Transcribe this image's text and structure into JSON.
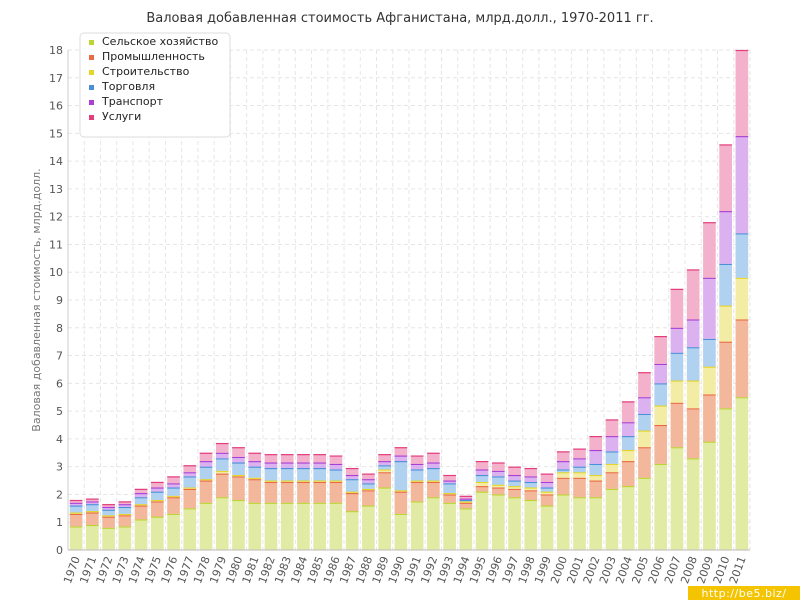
{
  "chart_data": {
    "type": "bar",
    "stacked": true,
    "title": "Валовая добавленная стоимость Афганистана, млрд.долл., 1970-2011 гг.",
    "ylabel": "Валовая добавленная стоимость, млрд.долл.",
    "xlabel": "",
    "ylim": [
      0,
      18
    ],
    "yticks": [
      "0",
      "1",
      "2",
      "3",
      "4",
      "5",
      "6",
      "7",
      "8",
      "9",
      "10",
      "11",
      "12",
      "13",
      "14",
      "15",
      "16",
      "17",
      "18"
    ],
    "grid": true,
    "legend_position": "top-left",
    "categories": [
      "1970",
      "1971",
      "1972",
      "1973",
      "1974",
      "1975",
      "1976",
      "1977",
      "1978",
      "1979",
      "1980",
      "1981",
      "1982",
      "1983",
      "1984",
      "1985",
      "1986",
      "1987",
      "1988",
      "1989",
      "1990",
      "1991",
      "1992",
      "1993",
      "1994",
      "1995",
      "1996",
      "1997",
      "1998",
      "1999",
      "2000",
      "2001",
      "2002",
      "2003",
      "2004",
      "2005",
      "2006",
      "2007",
      "2008",
      "2009",
      "2010",
      "2011"
    ],
    "series": [
      {
        "name": "Сельское хозяйство",
        "color": "#bcd631",
        "fill": "#dfe99a",
        "values": [
          0.85,
          0.9,
          0.8,
          0.85,
          1.1,
          1.2,
          1.3,
          1.5,
          1.7,
          1.9,
          1.8,
          1.7,
          1.7,
          1.7,
          1.7,
          1.7,
          1.7,
          1.4,
          1.6,
          2.25,
          1.3,
          1.75,
          1.9,
          1.7,
          1.5,
          2.1,
          2.0,
          1.9,
          1.8,
          1.6,
          2.0,
          1.9,
          1.9,
          2.2,
          2.3,
          2.6,
          3.1,
          3.7,
          3.3,
          3.9,
          5.1,
          5.5
        ]
      },
      {
        "name": "Промышленность",
        "color": "#ea6a46",
        "fill": "#f2b090",
        "values": [
          0.45,
          0.45,
          0.4,
          0.4,
          0.5,
          0.55,
          0.6,
          0.7,
          0.8,
          0.85,
          0.85,
          0.85,
          0.75,
          0.75,
          0.75,
          0.75,
          0.75,
          0.65,
          0.55,
          0.55,
          0.8,
          0.7,
          0.55,
          0.3,
          0.2,
          0.2,
          0.25,
          0.3,
          0.35,
          0.4,
          0.6,
          0.7,
          0.6,
          0.6,
          0.9,
          1.1,
          1.4,
          1.6,
          1.8,
          1.7,
          2.4,
          2.8
        ]
      },
      {
        "name": "Строительство",
        "color": "#e6d529",
        "fill": "#f1ea9a",
        "values": [
          0.05,
          0.05,
          0.05,
          0.05,
          0.05,
          0.05,
          0.05,
          0.05,
          0.05,
          0.1,
          0.05,
          0.05,
          0.05,
          0.05,
          0.05,
          0.05,
          0.05,
          0.05,
          0.05,
          0.1,
          0.05,
          0.05,
          0.05,
          0.05,
          0.05,
          0.15,
          0.1,
          0.1,
          0.1,
          0.1,
          0.2,
          0.2,
          0.2,
          0.3,
          0.4,
          0.6,
          0.7,
          0.8,
          1.0,
          1.0,
          1.3,
          1.5
        ]
      },
      {
        "name": "Торговля",
        "color": "#4a90d9",
        "fill": "#a8ccee",
        "values": [
          0.25,
          0.25,
          0.2,
          0.25,
          0.25,
          0.3,
          0.3,
          0.4,
          0.45,
          0.45,
          0.45,
          0.4,
          0.45,
          0.45,
          0.45,
          0.45,
          0.4,
          0.45,
          0.2,
          0.15,
          1.05,
          0.4,
          0.45,
          0.35,
          0.05,
          0.25,
          0.3,
          0.2,
          0.2,
          0.15,
          0.1,
          0.2,
          0.4,
          0.45,
          0.5,
          0.6,
          0.8,
          1.0,
          1.2,
          1.0,
          1.5,
          1.6
        ]
      },
      {
        "name": "Транспорт",
        "color": "#a93fd6",
        "fill": "#d7a8ee",
        "values": [
          0.1,
          0.1,
          0.1,
          0.1,
          0.15,
          0.15,
          0.15,
          0.15,
          0.2,
          0.2,
          0.2,
          0.2,
          0.2,
          0.2,
          0.2,
          0.2,
          0.2,
          0.15,
          0.15,
          0.15,
          0.2,
          0.2,
          0.2,
          0.1,
          0.05,
          0.2,
          0.2,
          0.2,
          0.2,
          0.2,
          0.3,
          0.3,
          0.5,
          0.55,
          0.5,
          0.6,
          0.7,
          0.9,
          1.0,
          2.2,
          1.9,
          3.5
        ]
      },
      {
        "name": "Услуги",
        "color": "#e43d7c",
        "fill": "#f2a8c6",
        "values": [
          0.1,
          0.1,
          0.1,
          0.1,
          0.15,
          0.2,
          0.25,
          0.25,
          0.3,
          0.35,
          0.35,
          0.3,
          0.3,
          0.3,
          0.3,
          0.3,
          0.3,
          0.25,
          0.2,
          0.25,
          0.3,
          0.3,
          0.35,
          0.2,
          0.1,
          0.3,
          0.3,
          0.3,
          0.3,
          0.3,
          0.35,
          0.35,
          0.5,
          0.6,
          0.75,
          0.9,
          1.0,
          1.4,
          1.8,
          2.0,
          2.4,
          3.1
        ]
      }
    ]
  },
  "watermark": "http://be5.biz/"
}
